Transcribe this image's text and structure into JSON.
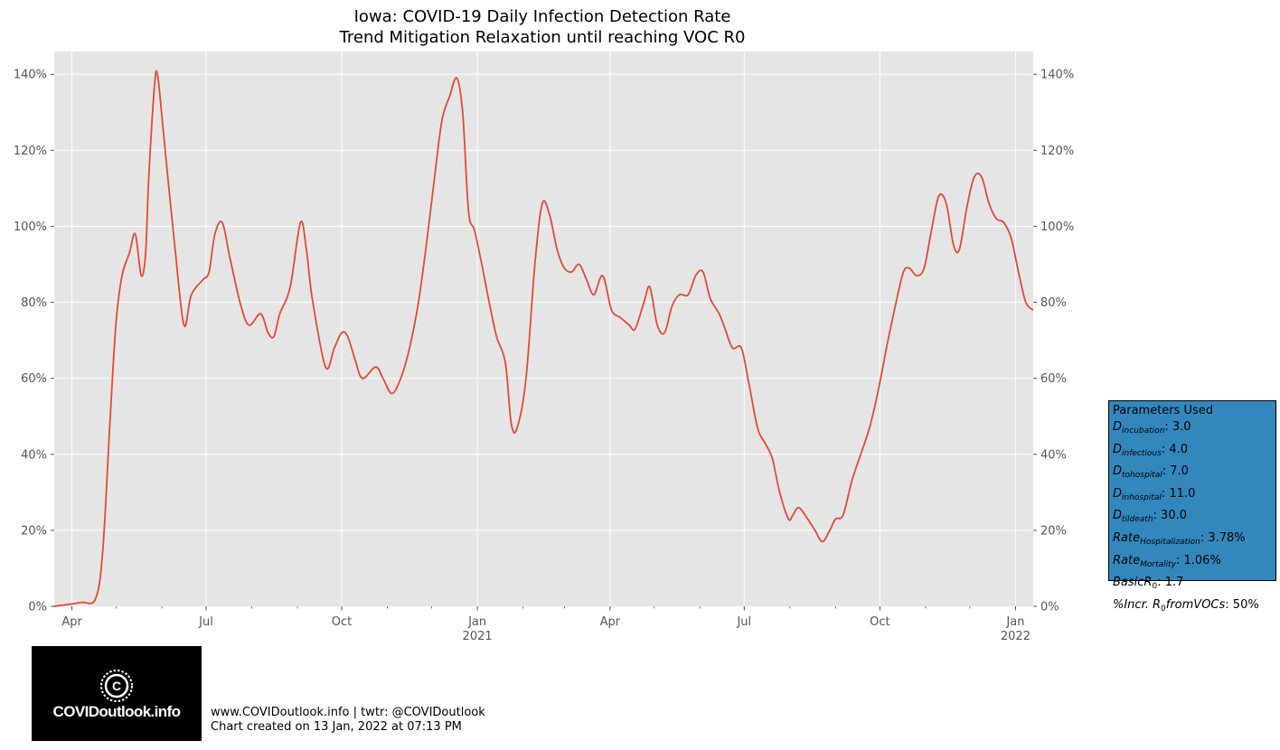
{
  "chart_data": {
    "type": "line",
    "title": "Iowa: COVID-19 Daily Infection Detection Rate",
    "subtitle": "Trend Mitigation Relaxation until reaching VOC R0",
    "xlabel": "",
    "ylabel": "",
    "x_range": [
      "2020-03-20",
      "2022-01-13"
    ],
    "ylim": [
      0,
      146
    ],
    "y_ticks": [
      "0%",
      "20%",
      "40%",
      "60%",
      "80%",
      "100%",
      "120%",
      "140%"
    ],
    "x_ticks": [
      {
        "date": "2020-04-01",
        "label": "Apr",
        "sub": ""
      },
      {
        "date": "2020-07-01",
        "label": "Jul",
        "sub": ""
      },
      {
        "date": "2020-10-01",
        "label": "Oct",
        "sub": ""
      },
      {
        "date": "2021-01-01",
        "label": "Jan",
        "sub": "2021"
      },
      {
        "date": "2021-04-01",
        "label": "Apr",
        "sub": ""
      },
      {
        "date": "2021-07-01",
        "label": "Jul",
        "sub": ""
      },
      {
        "date": "2021-10-01",
        "label": "Oct",
        "sub": ""
      },
      {
        "date": "2022-01-01",
        "label": "Jan",
        "sub": "2022"
      }
    ],
    "grid": true,
    "color": "#e24a33",
    "background": "#e5e5e5",
    "series": [
      {
        "values": [
          [
            "2020-03-20",
            0
          ],
          [
            "2020-04-07",
            1
          ],
          [
            "2020-04-17",
            2
          ],
          [
            "2020-04-22",
            15
          ],
          [
            "2020-04-27",
            50
          ],
          [
            "2020-05-01",
            75
          ],
          [
            "2020-05-05",
            87
          ],
          [
            "2020-05-10",
            93
          ],
          [
            "2020-05-14",
            98
          ],
          [
            "2020-05-18",
            87
          ],
          [
            "2020-05-21",
            93
          ],
          [
            "2020-05-23",
            112
          ],
          [
            "2020-05-27",
            137
          ],
          [
            "2020-05-29",
            140
          ],
          [
            "2020-06-01",
            129
          ],
          [
            "2020-06-05",
            113
          ],
          [
            "2020-06-10",
            94
          ],
          [
            "2020-06-16",
            74
          ],
          [
            "2020-06-21",
            82
          ],
          [
            "2020-06-29",
            86
          ],
          [
            "2020-07-03",
            88
          ],
          [
            "2020-07-07",
            98
          ],
          [
            "2020-07-12",
            101
          ],
          [
            "2020-07-17",
            92
          ],
          [
            "2020-07-24",
            80
          ],
          [
            "2020-07-30",
            74
          ],
          [
            "2020-08-07",
            77
          ],
          [
            "2020-08-12",
            72
          ],
          [
            "2020-08-16",
            71
          ],
          [
            "2020-08-20",
            77
          ],
          [
            "2020-08-27",
            84
          ],
          [
            "2020-09-03",
            101
          ],
          [
            "2020-09-07",
            94
          ],
          [
            "2020-09-11",
            81
          ],
          [
            "2020-09-20",
            63
          ],
          [
            "2020-09-26",
            68
          ],
          [
            "2020-10-01",
            72
          ],
          [
            "2020-10-05",
            71
          ],
          [
            "2020-10-10",
            65
          ],
          [
            "2020-10-15",
            60
          ],
          [
            "2020-10-24",
            63
          ],
          [
            "2020-10-29",
            60
          ],
          [
            "2020-11-04",
            56
          ],
          [
            "2020-11-10",
            60
          ],
          [
            "2020-11-16",
            68
          ],
          [
            "2020-11-22",
            80
          ],
          [
            "2020-11-28",
            97
          ],
          [
            "2020-12-03",
            113
          ],
          [
            "2020-12-08",
            128
          ],
          [
            "2020-12-13",
            134
          ],
          [
            "2020-12-18",
            139
          ],
          [
            "2020-12-22",
            130
          ],
          [
            "2020-12-26",
            104
          ],
          [
            "2020-12-30",
            99
          ],
          [
            "2021-01-04",
            90
          ],
          [
            "2021-01-09",
            80
          ],
          [
            "2021-01-14",
            71
          ],
          [
            "2021-01-20",
            64
          ],
          [
            "2021-01-24",
            48
          ],
          [
            "2021-01-28",
            47
          ],
          [
            "2021-02-03",
            60
          ],
          [
            "2021-02-09",
            90
          ],
          [
            "2021-02-14",
            106
          ],
          [
            "2021-02-19",
            103
          ],
          [
            "2021-02-24",
            94
          ],
          [
            "2021-03-01",
            89
          ],
          [
            "2021-03-06",
            88
          ],
          [
            "2021-03-11",
            90
          ],
          [
            "2021-03-16",
            86
          ],
          [
            "2021-03-21",
            82
          ],
          [
            "2021-03-27",
            87
          ],
          [
            "2021-04-02",
            78
          ],
          [
            "2021-04-08",
            76
          ],
          [
            "2021-04-14",
            74
          ],
          [
            "2021-04-18",
            73
          ],
          [
            "2021-04-24",
            80
          ],
          [
            "2021-04-28",
            84
          ],
          [
            "2021-05-03",
            74
          ],
          [
            "2021-05-08",
            72
          ],
          [
            "2021-05-13",
            79
          ],
          [
            "2021-05-18",
            82
          ],
          [
            "2021-05-24",
            82
          ],
          [
            "2021-05-29",
            87
          ],
          [
            "2021-06-03",
            88
          ],
          [
            "2021-06-08",
            81
          ],
          [
            "2021-06-14",
            77
          ],
          [
            "2021-06-18",
            73
          ],
          [
            "2021-06-23",
            68
          ],
          [
            "2021-06-29",
            68
          ],
          [
            "2021-07-04",
            59
          ],
          [
            "2021-07-10",
            47
          ],
          [
            "2021-07-15",
            43
          ],
          [
            "2021-07-20",
            39
          ],
          [
            "2021-07-25",
            30
          ],
          [
            "2021-07-31",
            23
          ],
          [
            "2021-08-03",
            24
          ],
          [
            "2021-08-07",
            26
          ],
          [
            "2021-08-13",
            23
          ],
          [
            "2021-08-18",
            20
          ],
          [
            "2021-08-23",
            17
          ],
          [
            "2021-08-28",
            20
          ],
          [
            "2021-09-01",
            23
          ],
          [
            "2021-09-06",
            24
          ],
          [
            "2021-09-12",
            33
          ],
          [
            "2021-09-18",
            40
          ],
          [
            "2021-09-24",
            47
          ],
          [
            "2021-09-30",
            57
          ],
          [
            "2021-10-06",
            69
          ],
          [
            "2021-10-12",
            80
          ],
          [
            "2021-10-17",
            88
          ],
          [
            "2021-10-21",
            89
          ],
          [
            "2021-10-26",
            87
          ],
          [
            "2021-10-31",
            89
          ],
          [
            "2021-11-05",
            99
          ],
          [
            "2021-11-10",
            108
          ],
          [
            "2021-11-15",
            106
          ],
          [
            "2021-11-20",
            95
          ],
          [
            "2021-11-24",
            94
          ],
          [
            "2021-11-29",
            105
          ],
          [
            "2021-12-04",
            113
          ],
          [
            "2021-12-09",
            113
          ],
          [
            "2021-12-14",
            106
          ],
          [
            "2021-12-19",
            102
          ],
          [
            "2021-12-24",
            101
          ],
          [
            "2021-12-29",
            97
          ],
          [
            "2022-01-03",
            88
          ],
          [
            "2022-01-08",
            80
          ],
          [
            "2022-01-13",
            78
          ]
        ]
      }
    ]
  },
  "params_box": {
    "title": "Parameters Used",
    "incubation": {
      "var": "D",
      "sub": "incubation",
      "value": ": 3.0"
    },
    "infectious": {
      "var": "D",
      "sub": "infectious",
      "value": ": 4.0"
    },
    "tohospital": {
      "var": "D",
      "sub": "tohospital",
      "value": ": 7.0"
    },
    "inhospital": {
      "var": "D",
      "sub": "inhospital",
      "value": ": 11.0"
    },
    "tildeath": {
      "var": "D",
      "sub": "tildeath",
      "value": ": 30.0"
    },
    "hospitalization": {
      "var": "Rate",
      "sub": "Hospitalization",
      "value": ": 3.78%"
    },
    "mortality": {
      "var": "Rate",
      "sub": "Mortality",
      "value": ": 1.06%"
    },
    "basic_r0": {
      "var": "BasicR",
      "sub": "0",
      "value": ": 1.7"
    },
    "voc": {
      "prefix": "%Incr. R",
      "sub": "0",
      "suffix": "fromVOCs",
      "value": ": 50%"
    }
  },
  "logo": {
    "text": "COVIDoutlook.info"
  },
  "footer": {
    "line1": "www.COVIDoutlook.info | twtr: @COVIDoutlook",
    "line2": "Chart created on 13 Jan, 2022 at 07:13 PM"
  }
}
